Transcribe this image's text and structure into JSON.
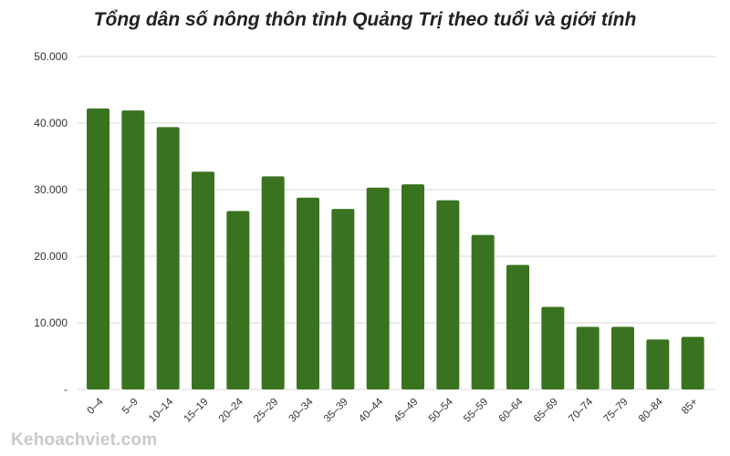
{
  "chart_data": {
    "type": "bar",
    "title": "Tổng dân số nông thôn tỉnh Quảng Trị theo tuổi và giới tính",
    "xlabel": "",
    "ylabel": "",
    "categories": [
      "0–4",
      "5–9",
      "10–14",
      "15–19",
      "20–24",
      "25–29",
      "30–34",
      "35–39",
      "40–44",
      "45–49",
      "50–54",
      "55–59",
      "60–64",
      "65–69",
      "70–74",
      "75–79",
      "80–84",
      "85+"
    ],
    "values": [
      42200,
      41900,
      39400,
      32700,
      26800,
      32000,
      28800,
      27100,
      30300,
      30800,
      28400,
      23200,
      18700,
      12400,
      9400,
      9400,
      7500,
      7900
    ],
    "ylim": [
      0,
      50000
    ],
    "yticks": [
      0,
      10000,
      20000,
      30000,
      40000,
      50000
    ],
    "ytick_labels": [
      "-",
      "10.000",
      "20.000",
      "30.000",
      "40.000",
      "50.000"
    ],
    "grid": true,
    "bar_color": "#3a7320"
  },
  "watermark": "Kehoachviet.com"
}
